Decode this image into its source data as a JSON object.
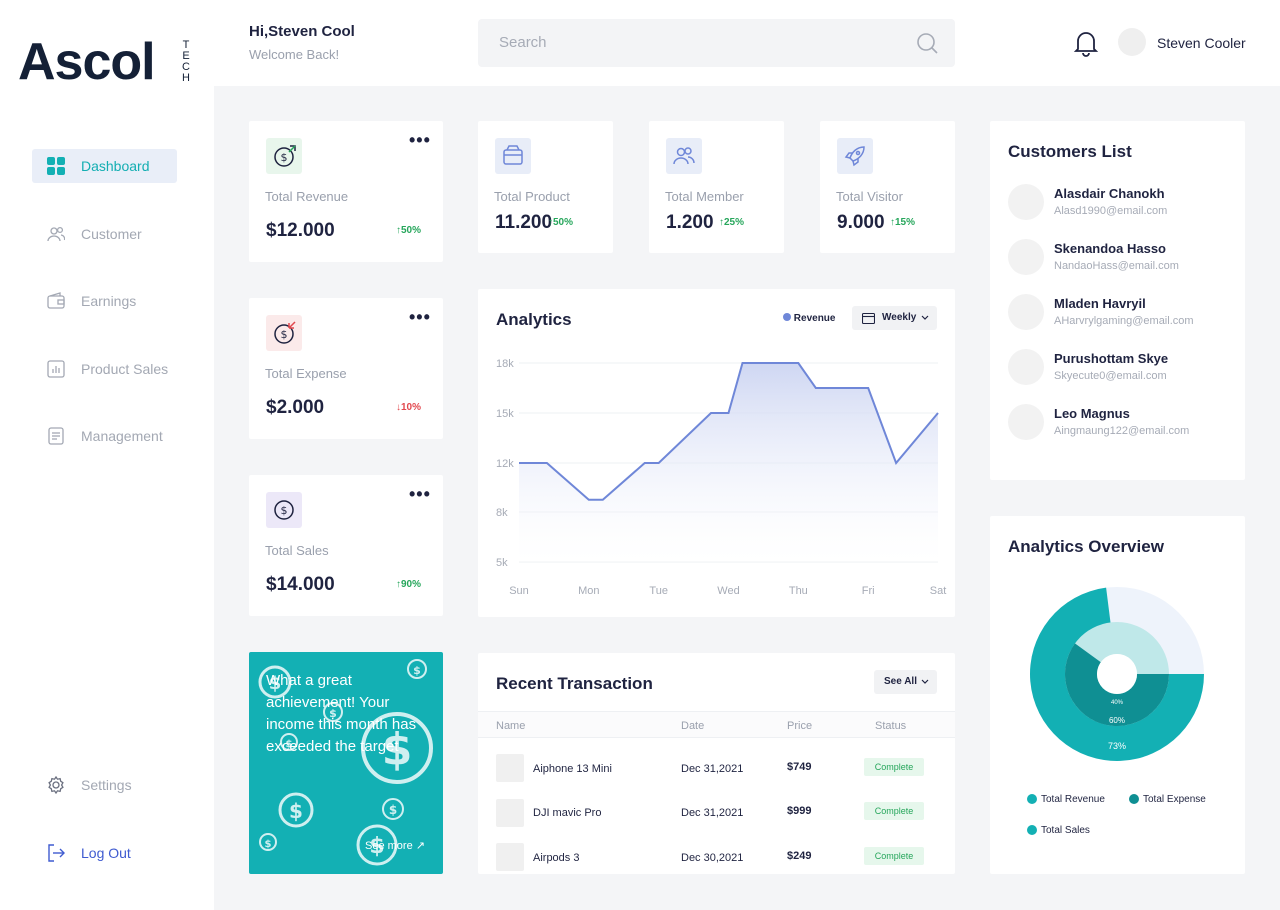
{
  "logo": {
    "main": "Ascol",
    "tech": [
      "T",
      "E",
      "C",
      "H"
    ]
  },
  "header": {
    "greeting": "Hi,Steven Cool",
    "subtitle": "Welcome Back!",
    "search_placeholder": "Search",
    "user_name": "Steven Cooler"
  },
  "sidebar": {
    "items": [
      {
        "label": "Dashboard",
        "icon": "dashboard-grid-icon",
        "active": true
      },
      {
        "label": "Customer",
        "icon": "users-icon"
      },
      {
        "label": "Earnings",
        "icon": "wallet-icon"
      },
      {
        "label": "Product Sales",
        "icon": "bar-chart-icon"
      },
      {
        "label": "Management",
        "icon": "document-icon"
      }
    ],
    "bottom": [
      {
        "label": "Settings",
        "icon": "gear-icon"
      },
      {
        "label": "Log Out",
        "icon": "logout-icon"
      }
    ]
  },
  "stats_left": [
    {
      "label": "Total Revenue",
      "value": "$12.000",
      "change": "↑50%",
      "trend": "up",
      "icon": "revenue-icon"
    },
    {
      "label": "Total Expense",
      "value": "$2.000",
      "change": "↓10%",
      "trend": "down",
      "icon": "expense-icon"
    },
    {
      "label": "Total Sales",
      "value": "$14.000",
      "change": "↑90%",
      "trend": "up",
      "icon": "sales-icon"
    }
  ],
  "stats_top": [
    {
      "label": "Total Product",
      "value": "11.200",
      "change": "↑50%",
      "icon": "box-icon"
    },
    {
      "label": "Total Member",
      "value": "1.200",
      "change": "↑25%",
      "icon": "members-icon"
    },
    {
      "label": "Total Visitor",
      "value": "9.000",
      "change": "↑15%",
      "icon": "rocket-icon"
    }
  ],
  "analytics": {
    "title": "Analytics",
    "legend": "Revenue",
    "period": "Weekly"
  },
  "chart_data": {
    "type": "area",
    "categories": [
      "Sun",
      "Mon",
      "Tue",
      "Wed",
      "Thu",
      "Fri",
      "Sat"
    ],
    "yticks": [
      "18k",
      "15k",
      "12k",
      "8k",
      "5k"
    ],
    "ytick_values": [
      18000,
      15000,
      12000,
      8000,
      5000
    ],
    "x": [
      0,
      0.4,
      1,
      1.2,
      1.8,
      2.0,
      2.75,
      3.0,
      3.2,
      4.0,
      4.25,
      5.0,
      5.4,
      6.0
    ],
    "values": [
      12000,
      12000,
      9000,
      9000,
      12000,
      12000,
      15000,
      15000,
      18000,
      18000,
      16500,
      16500,
      12000,
      15000
    ],
    "ylim": [
      5000,
      18000
    ],
    "series": [
      {
        "name": "Revenue",
        "color": "#6f87d8"
      }
    ],
    "grid": true
  },
  "promo": {
    "text": "What a great achievement! Your income this month has exceeded the target",
    "link": "See more ↗"
  },
  "transactions": {
    "title": "Recent Transaction",
    "see_all": "See All",
    "columns": [
      "Name",
      "Date",
      "Price",
      "Status"
    ],
    "rows": [
      {
        "name": "Aiphone 13 Mini",
        "date": "Dec 31,2021",
        "price": "$749",
        "status": "Complete"
      },
      {
        "name": "DJI mavic Pro",
        "date": "Dec 31,2021",
        "price": "$999",
        "status": "Complete"
      },
      {
        "name": "Airpods 3",
        "date": "Dec 30,2021",
        "price": "$249",
        "status": "Complete"
      }
    ]
  },
  "customers": {
    "title": "Customers List",
    "items": [
      {
        "name": "Alasdair Chanokh",
        "email": "Alasd1990@email.com"
      },
      {
        "name": "Skenandoa Hasso",
        "email": "NandaoHass@email.com"
      },
      {
        "name": "Mladen Havryil",
        "email": "AHarvrylgaming@email.com"
      },
      {
        "name": "Purushottam Skye",
        "email": "Skyecute0@email.com"
      },
      {
        "name": "Leo Magnus",
        "email": "Aingmaung122@email.com"
      }
    ]
  },
  "overview": {
    "title": "Analytics Overview",
    "rings": [
      {
        "label": "Total Revenue",
        "percent": 73,
        "label_text": "73%",
        "color": "#13b0b4"
      },
      {
        "label": "Total Expense",
        "percent": 60,
        "label_text": "60%",
        "color": "#0f8f93"
      },
      {
        "label": "Total Sales",
        "percent": 40,
        "label_text": "40%",
        "color": "#7fd6d8"
      }
    ],
    "legend": [
      {
        "label": "Total Revenue",
        "color": "#13b0b4"
      },
      {
        "label": "Total Expense",
        "color": "#0f8f93"
      },
      {
        "label": "Total Sales",
        "color": "#13b0b4"
      }
    ]
  }
}
